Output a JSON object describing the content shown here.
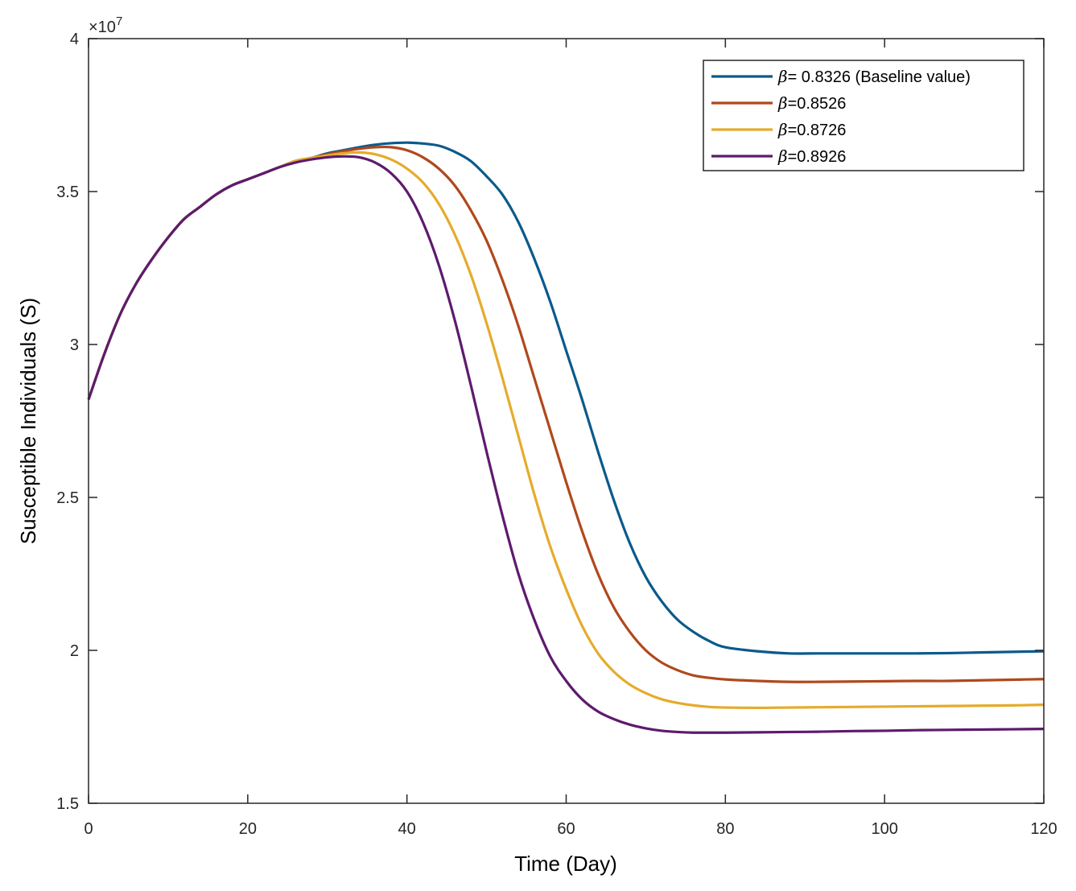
{
  "chart_data": {
    "type": "line",
    "xlabel": "Time (Day)",
    "ylabel": "Susceptible Individuals (S)",
    "y_exponent_label": "×10",
    "y_exponent": "7",
    "xlim": [
      0,
      120
    ],
    "ylim": [
      1.5,
      4.0
    ],
    "y_scale": 10000000,
    "x_ticks": [
      0,
      20,
      40,
      60,
      80,
      100,
      120
    ],
    "y_ticks": [
      1.5,
      2,
      2.5,
      3,
      3.5,
      4
    ],
    "y_tick_labels": [
      "1.5",
      "2",
      "2.5",
      "3",
      "3.5",
      "4"
    ],
    "grid": false,
    "legend_position": "top-right",
    "series": [
      {
        "name": "= 0.8326 (Baseline value)",
        "symbol": "β",
        "color": "#0a5a8c",
        "points": [
          [
            0,
            2.82
          ],
          [
            2,
            2.97
          ],
          [
            4,
            3.1
          ],
          [
            6,
            3.2
          ],
          [
            8,
            3.28
          ],
          [
            10,
            3.35
          ],
          [
            12,
            3.41
          ],
          [
            14,
            3.45
          ],
          [
            16,
            3.49
          ],
          [
            18,
            3.52
          ],
          [
            20,
            3.54
          ],
          [
            22,
            3.56
          ],
          [
            24,
            3.58
          ],
          [
            26,
            3.6
          ],
          [
            28,
            3.61
          ],
          [
            30,
            3.625
          ],
          [
            32,
            3.635
          ],
          [
            34,
            3.645
          ],
          [
            36,
            3.653
          ],
          [
            38,
            3.658
          ],
          [
            40,
            3.66
          ],
          [
            42,
            3.657
          ],
          [
            44,
            3.65
          ],
          [
            46,
            3.63
          ],
          [
            48,
            3.6
          ],
          [
            50,
            3.55
          ],
          [
            52,
            3.49
          ],
          [
            54,
            3.4
          ],
          [
            56,
            3.28
          ],
          [
            58,
            3.14
          ],
          [
            60,
            2.98
          ],
          [
            62,
            2.82
          ],
          [
            64,
            2.65
          ],
          [
            66,
            2.49
          ],
          [
            68,
            2.35
          ],
          [
            70,
            2.24
          ],
          [
            72,
            2.16
          ],
          [
            74,
            2.1
          ],
          [
            76,
            2.06
          ],
          [
            78,
            2.03
          ],
          [
            80,
            2.01
          ],
          [
            84,
            1.997
          ],
          [
            88,
            1.99
          ],
          [
            92,
            1.99
          ],
          [
            96,
            1.99
          ],
          [
            100,
            1.99
          ],
          [
            104,
            1.99
          ],
          [
            108,
            1.991
          ],
          [
            112,
            1.993
          ],
          [
            116,
            1.995
          ],
          [
            120,
            1.997
          ]
        ]
      },
      {
        "name": "=0.8526",
        "symbol": "β",
        "color": "#b0491c",
        "points": [
          [
            0,
            2.82
          ],
          [
            2,
            2.97
          ],
          [
            4,
            3.1
          ],
          [
            6,
            3.2
          ],
          [
            8,
            3.28
          ],
          [
            10,
            3.35
          ],
          [
            12,
            3.41
          ],
          [
            14,
            3.45
          ],
          [
            16,
            3.49
          ],
          [
            18,
            3.52
          ],
          [
            20,
            3.54
          ],
          [
            22,
            3.56
          ],
          [
            24,
            3.58
          ],
          [
            26,
            3.6
          ],
          [
            28,
            3.61
          ],
          [
            30,
            3.622
          ],
          [
            32,
            3.632
          ],
          [
            34,
            3.64
          ],
          [
            36,
            3.645
          ],
          [
            38,
            3.645
          ],
          [
            40,
            3.635
          ],
          [
            42,
            3.612
          ],
          [
            44,
            3.575
          ],
          [
            46,
            3.52
          ],
          [
            48,
            3.44
          ],
          [
            50,
            3.34
          ],
          [
            52,
            3.21
          ],
          [
            54,
            3.06
          ],
          [
            56,
            2.89
          ],
          [
            58,
            2.72
          ],
          [
            60,
            2.55
          ],
          [
            62,
            2.39
          ],
          [
            64,
            2.25
          ],
          [
            66,
            2.14
          ],
          [
            68,
            2.06
          ],
          [
            70,
            2.0
          ],
          [
            72,
            1.96
          ],
          [
            74,
            1.935
          ],
          [
            76,
            1.918
          ],
          [
            78,
            1.91
          ],
          [
            80,
            1.905
          ],
          [
            84,
            1.9
          ],
          [
            88,
            1.897
          ],
          [
            92,
            1.897
          ],
          [
            96,
            1.898
          ],
          [
            100,
            1.899
          ],
          [
            104,
            1.9
          ],
          [
            108,
            1.9
          ],
          [
            112,
            1.902
          ],
          [
            116,
            1.904
          ],
          [
            120,
            1.906
          ]
        ]
      },
      {
        "name": "=0.8726",
        "symbol": "β",
        "color": "#e5ab2c",
        "points": [
          [
            0,
            2.82
          ],
          [
            2,
            2.97
          ],
          [
            4,
            3.1
          ],
          [
            6,
            3.2
          ],
          [
            8,
            3.28
          ],
          [
            10,
            3.35
          ],
          [
            12,
            3.41
          ],
          [
            14,
            3.45
          ],
          [
            16,
            3.49
          ],
          [
            18,
            3.52
          ],
          [
            20,
            3.54
          ],
          [
            22,
            3.56
          ],
          [
            24,
            3.58
          ],
          [
            26,
            3.6
          ],
          [
            28,
            3.61
          ],
          [
            30,
            3.618
          ],
          [
            32,
            3.625
          ],
          [
            34,
            3.628
          ],
          [
            36,
            3.622
          ],
          [
            38,
            3.605
          ],
          [
            40,
            3.575
          ],
          [
            42,
            3.53
          ],
          [
            44,
            3.46
          ],
          [
            46,
            3.36
          ],
          [
            48,
            3.23
          ],
          [
            50,
            3.07
          ],
          [
            52,
            2.89
          ],
          [
            54,
            2.7
          ],
          [
            56,
            2.51
          ],
          [
            58,
            2.34
          ],
          [
            60,
            2.2
          ],
          [
            62,
            2.08
          ],
          [
            64,
            1.99
          ],
          [
            66,
            1.93
          ],
          [
            68,
            1.888
          ],
          [
            70,
            1.86
          ],
          [
            72,
            1.84
          ],
          [
            74,
            1.828
          ],
          [
            76,
            1.82
          ],
          [
            78,
            1.815
          ],
          [
            80,
            1.813
          ],
          [
            84,
            1.812
          ],
          [
            88,
            1.813
          ],
          [
            92,
            1.814
          ],
          [
            96,
            1.815
          ],
          [
            100,
            1.816
          ],
          [
            104,
            1.817
          ],
          [
            108,
            1.818
          ],
          [
            112,
            1.819
          ],
          [
            116,
            1.82
          ],
          [
            120,
            1.822
          ]
        ]
      },
      {
        "name": "=0.8926",
        "symbol": "β",
        "color": "#5e1a6e",
        "points": [
          [
            0,
            2.82
          ],
          [
            2,
            2.97
          ],
          [
            4,
            3.1
          ],
          [
            6,
            3.2
          ],
          [
            8,
            3.28
          ],
          [
            10,
            3.35
          ],
          [
            12,
            3.41
          ],
          [
            14,
            3.45
          ],
          [
            16,
            3.49
          ],
          [
            18,
            3.52
          ],
          [
            20,
            3.54
          ],
          [
            22,
            3.56
          ],
          [
            24,
            3.58
          ],
          [
            26,
            3.595
          ],
          [
            28,
            3.605
          ],
          [
            30,
            3.612
          ],
          [
            32,
            3.615
          ],
          [
            34,
            3.612
          ],
          [
            36,
            3.595
          ],
          [
            38,
            3.56
          ],
          [
            40,
            3.5
          ],
          [
            42,
            3.4
          ],
          [
            44,
            3.26
          ],
          [
            46,
            3.08
          ],
          [
            48,
            2.87
          ],
          [
            50,
            2.65
          ],
          [
            52,
            2.44
          ],
          [
            54,
            2.25
          ],
          [
            56,
            2.1
          ],
          [
            58,
            1.98
          ],
          [
            60,
            1.9
          ],
          [
            62,
            1.84
          ],
          [
            64,
            1.8
          ],
          [
            66,
            1.775
          ],
          [
            68,
            1.757
          ],
          [
            70,
            1.745
          ],
          [
            72,
            1.737
          ],
          [
            74,
            1.733
          ],
          [
            76,
            1.731
          ],
          [
            78,
            1.731
          ],
          [
            80,
            1.731
          ],
          [
            84,
            1.732
          ],
          [
            88,
            1.733
          ],
          [
            92,
            1.734
          ],
          [
            96,
            1.736
          ],
          [
            100,
            1.737
          ],
          [
            104,
            1.739
          ],
          [
            108,
            1.74
          ],
          [
            112,
            1.741
          ],
          [
            116,
            1.742
          ],
          [
            120,
            1.743
          ]
        ]
      }
    ]
  }
}
